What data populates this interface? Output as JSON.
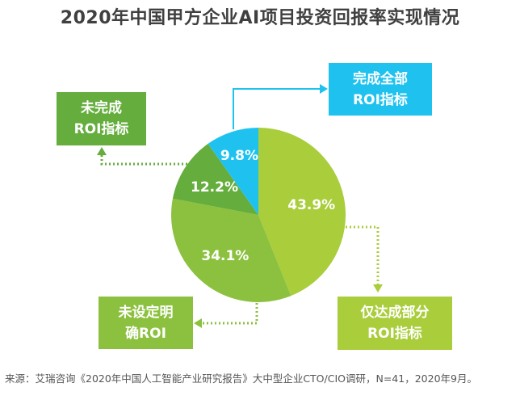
{
  "chart_data": {
    "type": "pie",
    "title": "2020年中国甲方企业AI项目投资回报率实现情况",
    "slices": [
      {
        "label": "仅达成部分ROI指标",
        "label_lines": [
          "仅达成部分",
          "ROI指标"
        ],
        "value": 43.9,
        "value_label": "43.9%",
        "color": "#a9cd3b"
      },
      {
        "label": "未设定明确ROI",
        "label_lines": [
          "未设定明",
          "确ROI"
        ],
        "value": 34.1,
        "value_label": "34.1%",
        "color": "#8cc13f"
      },
      {
        "label": "未完成ROI指标",
        "label_lines": [
          "未完成",
          "ROI指标"
        ],
        "value": 12.2,
        "value_label": "12.2%",
        "color": "#65ad3d"
      },
      {
        "label": "完成全部ROI指标",
        "label_lines": [
          "完成全部",
          "ROI指标"
        ],
        "value": 9.8,
        "value_label": "9.8%",
        "color": "#1fc2ef"
      }
    ],
    "start_angle": "12 o'clock",
    "direction": "clockwise"
  },
  "source": "来源：艾瑞咨询《2020年中国人工智能产业研究报告》大中型企业CTO/CIO调研，N=41，2020年9月。"
}
